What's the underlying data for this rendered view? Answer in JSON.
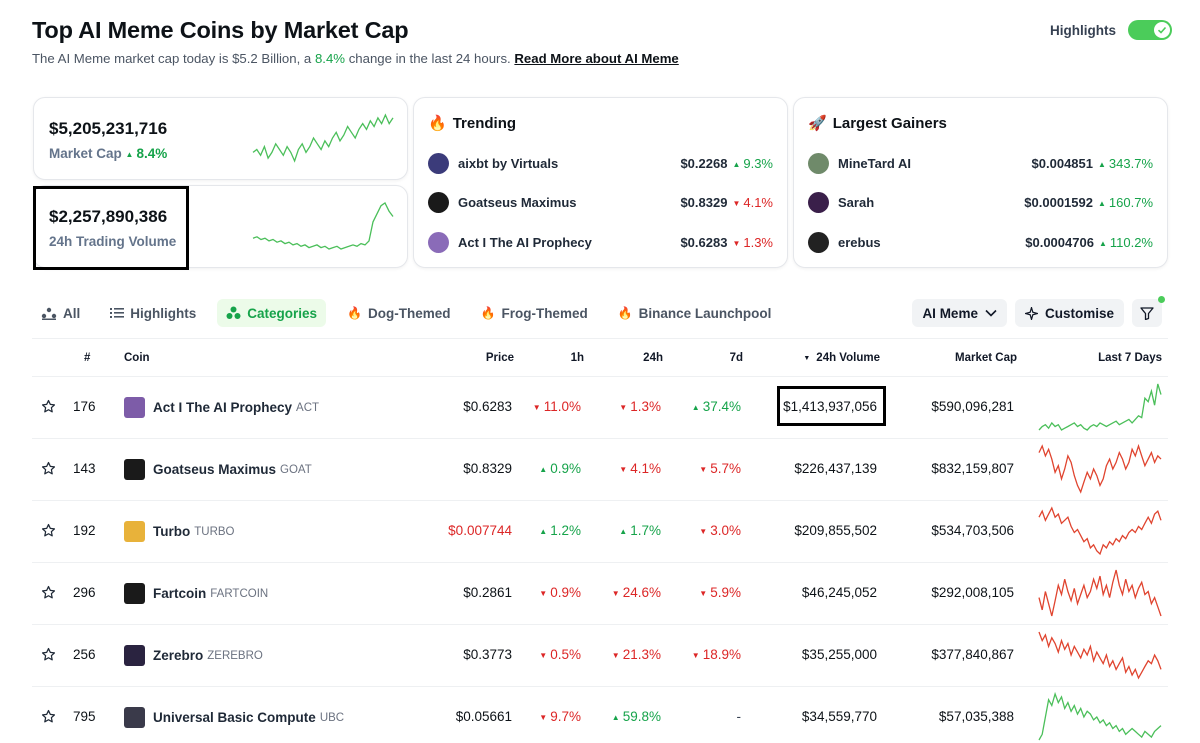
{
  "header": {
    "title": "Top AI Meme Coins by Market Cap",
    "subtitle_prefix": "The AI Meme market cap today is $5.2 Billion, a",
    "subtitle_change": "8.4%",
    "subtitle_suffix": "change in the last 24 hours.",
    "read_more": "Read More about AI Meme",
    "highlights_label": "Highlights",
    "highlights_on": true
  },
  "stats": {
    "market_cap": {
      "value": "$5,205,231,716",
      "label": "Market Cap",
      "change": "8.4%",
      "direction": "up"
    },
    "volume": {
      "value": "$2,257,890,386",
      "label": "24h Trading Volume"
    }
  },
  "trending": {
    "title": "Trending",
    "icon": "fire-icon",
    "items": [
      {
        "name": "aixbt by Virtuals",
        "price": "$0.2268",
        "change": "9.3%",
        "direction": "up",
        "color": "#3b3b7a"
      },
      {
        "name": "Goatseus Maximus",
        "price": "$0.8329",
        "change": "4.1%",
        "direction": "down",
        "color": "#1a1a1a"
      },
      {
        "name": "Act I The AI Prophecy",
        "price": "$0.6283",
        "change": "1.3%",
        "direction": "down",
        "color": "#8a6bb8"
      }
    ]
  },
  "gainers": {
    "title": "Largest Gainers",
    "icon": "rocket-icon",
    "items": [
      {
        "name": "MineTard AI",
        "price": "$0.004851",
        "change": "343.7%",
        "direction": "up",
        "color": "#6f8a6a"
      },
      {
        "name": "Sarah",
        "price": "$0.0001592",
        "change": "160.7%",
        "direction": "up",
        "color": "#3a1f4a"
      },
      {
        "name": "erebus",
        "price": "$0.0004706",
        "change": "110.2%",
        "direction": "up",
        "color": "#222222"
      }
    ]
  },
  "tabs": [
    {
      "label": "All",
      "icon": "chart-icon",
      "active": false
    },
    {
      "label": "Highlights",
      "icon": "list-icon",
      "active": false
    },
    {
      "label": "Categories",
      "icon": "categories-icon",
      "active": true
    },
    {
      "label": "Dog-Themed",
      "icon": "fire-icon",
      "active": false
    },
    {
      "label": "Frog-Themed",
      "icon": "fire-icon",
      "active": false
    },
    {
      "label": "Binance Launchpool",
      "icon": "fire-icon",
      "active": false
    }
  ],
  "controls": {
    "category": "AI Meme",
    "customise": "Customise"
  },
  "table": {
    "headers": {
      "rank": "#",
      "coin": "Coin",
      "price": "Price",
      "h1": "1h",
      "h24": "24h",
      "d7": "7d",
      "volume": "24h Volume",
      "mcap": "Market Cap",
      "last7": "Last 7 Days"
    },
    "rows": [
      {
        "rank": "176",
        "name": "Act I The AI Prophecy",
        "symbol": "ACT",
        "price": "$0.6283",
        "price_red": false,
        "h1": "11.0%",
        "h1_dir": "down",
        "h24": "1.3%",
        "h24_dir": "down",
        "d7": "37.4%",
        "d7_dir": "up",
        "volume": "$1,413,937,056",
        "mcap": "$590,096,281",
        "icon_color": "#7d5ca8",
        "trend": "up",
        "spark": [
          30,
          28,
          27,
          29,
          26,
          28,
          27,
          30,
          29,
          28,
          27,
          26,
          28,
          27,
          29,
          30,
          28,
          27,
          28,
          26,
          27,
          28,
          27,
          26,
          25,
          27,
          26,
          25,
          24,
          26,
          24,
          22,
          23,
          12,
          14,
          8,
          16,
          4,
          10
        ]
      },
      {
        "rank": "143",
        "name": "Goatseus Maximus",
        "symbol": "GOAT",
        "price": "$0.8329",
        "price_red": false,
        "h1": "0.9%",
        "h1_dir": "up",
        "h24": "4.1%",
        "h24_dir": "down",
        "d7": "5.7%",
        "d7_dir": "down",
        "volume": "$226,437,139",
        "mcap": "$832,159,807",
        "icon_color": "#1a1a1a",
        "trend": "down",
        "spark": [
          10,
          6,
          12,
          8,
          14,
          22,
          18,
          26,
          20,
          12,
          16,
          24,
          30,
          34,
          28,
          22,
          26,
          20,
          24,
          30,
          26,
          18,
          14,
          20,
          16,
          10,
          14,
          20,
          16,
          8,
          12,
          6,
          12,
          18,
          14,
          10,
          16,
          12,
          14
        ]
      },
      {
        "rank": "192",
        "name": "Turbo",
        "symbol": "TURBO",
        "price": "$0.007744",
        "price_red": true,
        "h1": "1.2%",
        "h1_dir": "up",
        "h24": "1.7%",
        "h24_dir": "up",
        "d7": "3.0%",
        "d7_dir": "down",
        "volume": "$209,855,502",
        "mcap": "$534,703,506",
        "icon_color": "#e8b23a",
        "trend": "down",
        "spark": [
          12,
          8,
          14,
          10,
          6,
          12,
          10,
          16,
          14,
          12,
          18,
          22,
          20,
          24,
          28,
          26,
          32,
          30,
          34,
          36,
          30,
          32,
          28,
          30,
          26,
          28,
          24,
          26,
          22,
          20,
          22,
          18,
          20,
          16,
          12,
          16,
          10,
          8,
          14
        ]
      },
      {
        "rank": "296",
        "name": "Fartcoin",
        "symbol": "FARTCOIN",
        "price": "$0.2861",
        "price_red": false,
        "h1": "0.9%",
        "h1_dir": "down",
        "h24": "24.6%",
        "h24_dir": "down",
        "d7": "5.9%",
        "d7_dir": "down",
        "volume": "$46,245,052",
        "mcap": "$292,008,105",
        "icon_color": "#1a1a1a",
        "trend": "down",
        "spark": [
          22,
          30,
          18,
          26,
          34,
          24,
          14,
          20,
          10,
          18,
          24,
          16,
          26,
          20,
          14,
          22,
          18,
          10,
          16,
          8,
          20,
          14,
          22,
          12,
          4,
          14,
          20,
          10,
          18,
          14,
          22,
          16,
          12,
          20,
          18,
          26,
          22,
          28,
          34
        ]
      },
      {
        "rank": "256",
        "name": "Zerebro",
        "symbol": "ZEREBRO",
        "price": "$0.3773",
        "price_red": false,
        "h1": "0.5%",
        "h1_dir": "down",
        "h24": "21.3%",
        "h24_dir": "down",
        "d7": "18.9%",
        "d7_dir": "down",
        "volume": "$35,255,000",
        "mcap": "$377,840,867",
        "icon_color": "#2a2340",
        "trend": "down",
        "spark": [
          4,
          10,
          6,
          14,
          8,
          12,
          18,
          10,
          16,
          12,
          20,
          14,
          18,
          22,
          16,
          20,
          14,
          24,
          18,
          22,
          26,
          20,
          28,
          24,
          30,
          26,
          22,
          32,
          28,
          34,
          30,
          36,
          32,
          28,
          24,
          26,
          20,
          24,
          30
        ]
      },
      {
        "rank": "795",
        "name": "Universal Basic Compute",
        "symbol": "UBC",
        "price": "$0.05661",
        "price_red": false,
        "h1": "9.7%",
        "h1_dir": "down",
        "h24": "59.8%",
        "h24_dir": "up",
        "d7": "-",
        "d7_dir": "none",
        "volume": "$34,559,770",
        "mcap": "$57,035,388",
        "icon_color": "#3a3a4a",
        "trend": "up",
        "spark": [
          36,
          32,
          20,
          8,
          12,
          4,
          10,
          6,
          14,
          10,
          16,
          12,
          18,
          14,
          20,
          16,
          18,
          22,
          20,
          24,
          22,
          26,
          24,
          28,
          26,
          30,
          28,
          32,
          30,
          28,
          30,
          32,
          34,
          30,
          32,
          34,
          30,
          28,
          26
        ]
      }
    ]
  },
  "sparks": {
    "market_cap": [
      28,
      26,
      30,
      24,
      32,
      28,
      22,
      26,
      30,
      24,
      28,
      34,
      26,
      22,
      28,
      24,
      18,
      22,
      26,
      20,
      24,
      18,
      14,
      20,
      16,
      10,
      14,
      18,
      12,
      8,
      12,
      6,
      10,
      4,
      8,
      2,
      8,
      4
    ],
    "volume": [
      28,
      27,
      29,
      28,
      30,
      29,
      31,
      30,
      32,
      31,
      33,
      32,
      34,
      33,
      35,
      34,
      33,
      35,
      34,
      36,
      35,
      34,
      36,
      35,
      34,
      33,
      34,
      32,
      33,
      30,
      16,
      10,
      4,
      2,
      8,
      12
    ]
  },
  "colors": {
    "up": "#16a34a",
    "down": "#dc2626",
    "spark_up": "#4bbf5a",
    "spark_down": "#e0442f",
    "accent": "#4bcc5a"
  }
}
